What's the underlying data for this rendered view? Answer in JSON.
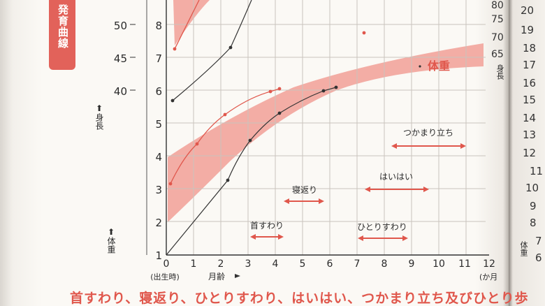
{
  "tab": {
    "label": "発育曲線"
  },
  "chart": {
    "weight_ticks": [
      "8",
      "7",
      "6",
      "5",
      "4",
      "3",
      "2",
      "1"
    ],
    "height_ticks": [
      "50",
      "45",
      "40"
    ],
    "month_ticks": [
      "0",
      "1",
      "2",
      "3",
      "4",
      "5",
      "6",
      "7",
      "8",
      "9",
      "10",
      "11",
      "12"
    ],
    "birth_label": "(出生時)",
    "x_label": "月齢",
    "x_unit": "(か月",
    "height_label_arrow": "⬆",
    "height_label": "身長",
    "weight_label_arrow": "⬆",
    "weight_label": "体重",
    "weight_band_label": "体重"
  },
  "milestones": [
    {
      "label": "首すわり"
    },
    {
      "label": "寝返り"
    },
    {
      "label": "ひとりすわり"
    },
    {
      "label": "はいはい"
    },
    {
      "label": "つかまり立ち"
    }
  ],
  "right_page": {
    "height_ticks": [
      "80",
      "75",
      "70",
      "65"
    ],
    "height_label": "身長",
    "ticks": [
      "20",
      "19",
      "18",
      "17",
      "16",
      "15",
      "14",
      "13",
      "12",
      "11",
      "10",
      "9",
      "8",
      "7",
      "6"
    ],
    "weight_label": "体重"
  },
  "bottom_caption": "首すわり、寝返り、ひとりすわり、はいはい、つかまり立ち及びひとり歩",
  "colors": {
    "accent": "#e0574c",
    "band": "#f2a9a0"
  }
}
